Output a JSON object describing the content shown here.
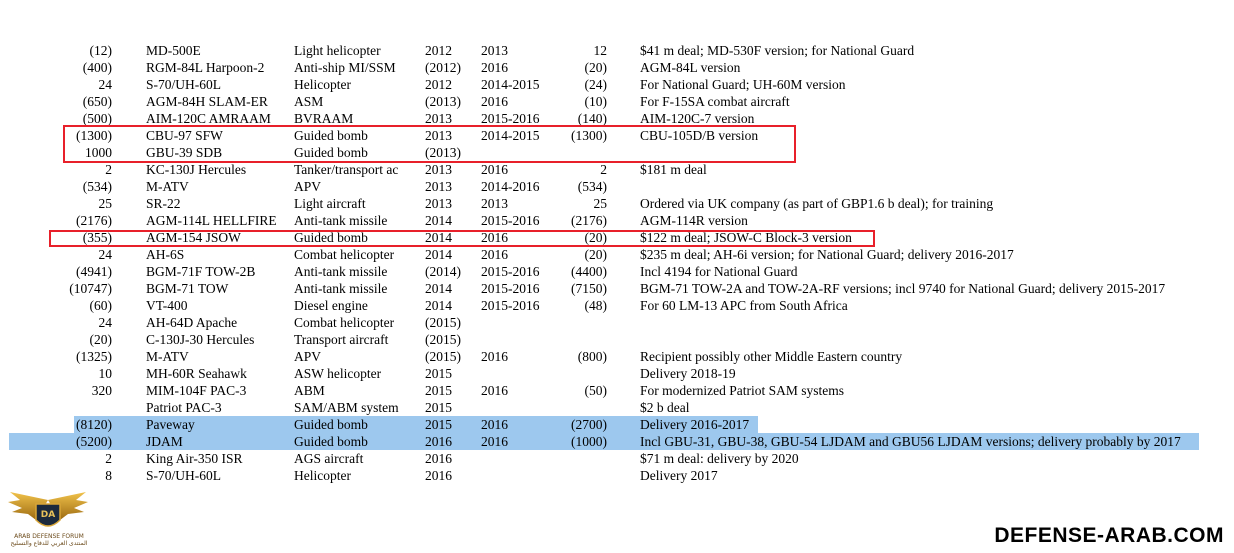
{
  "rows": [
    {
      "qty": "(12)",
      "name": "MD-500E",
      "desc": "Light helicopter",
      "ordered": "2012",
      "delivered": "2013",
      "number": "12",
      "comment": "$41 m deal; MD-530F version; for National Guard",
      "highlight": ""
    },
    {
      "qty": "(400)",
      "name": "RGM-84L Harpoon-2",
      "desc": "Anti-ship MI/SSM",
      "ordered": "(2012)",
      "delivered": "2016",
      "number": "(20)",
      "comment": "AGM-84L version",
      "highlight": ""
    },
    {
      "qty": "24",
      "name": "S-70/UH-60L",
      "desc": "Helicopter",
      "ordered": "2012",
      "delivered": "2014-2015",
      "number": "(24)",
      "comment": "For National Guard; UH-60M version",
      "highlight": ""
    },
    {
      "qty": "(650)",
      "name": "AGM-84H SLAM-ER",
      "desc": "ASM",
      "ordered": "(2013)",
      "delivered": "2016",
      "number": "(10)",
      "comment": "For F-15SA combat aircraft",
      "highlight": ""
    },
    {
      "qty": "(500)",
      "name": "AIM-120C AMRAAM",
      "desc": "BVRAAM",
      "ordered": "2013",
      "delivered": "2015-2016",
      "number": "(140)",
      "comment": "AIM-120C-7 version",
      "highlight": ""
    },
    {
      "qty": "(1300)",
      "name": "CBU-97 SFW",
      "desc": "Guided bomb",
      "ordered": "2013",
      "delivered": "2014-2015",
      "number": "(1300)",
      "comment": "CBU-105D/B version",
      "highlight": ""
    },
    {
      "qty": "1000",
      "name": "GBU-39 SDB",
      "desc": "Guided bomb",
      "ordered": "(2013)",
      "delivered": "",
      "number": "",
      "comment": "",
      "highlight": ""
    },
    {
      "qty": "2",
      "name": "KC-130J Hercules",
      "desc": "Tanker/transport ac",
      "ordered": "2013",
      "delivered": "2016",
      "number": "2",
      "comment": "$181 m deal",
      "highlight": ""
    },
    {
      "qty": "(534)",
      "name": "M-ATV",
      "desc": "APV",
      "ordered": "2013",
      "delivered": "2014-2016",
      "number": "(534)",
      "comment": "",
      "highlight": ""
    },
    {
      "qty": "25",
      "name": "SR-22",
      "desc": "Light aircraft",
      "ordered": "2013",
      "delivered": "2013",
      "number": "25",
      "comment": "Ordered via UK company (as part of GBP1.6 b deal); for training",
      "highlight": ""
    },
    {
      "qty": "(2176)",
      "name": "AGM-114L HELLFIRE",
      "desc": "Anti-tank missile",
      "ordered": "2014",
      "delivered": "2015-2016",
      "number": "(2176)",
      "comment": "AGM-114R version",
      "highlight": ""
    },
    {
      "qty": "(355)",
      "name": "AGM-154 JSOW",
      "desc": "Guided bomb",
      "ordered": "2014",
      "delivered": "2016",
      "number": "(20)",
      "comment": "$122 m deal; JSOW-C Block-3 version",
      "highlight": ""
    },
    {
      "qty": "24",
      "name": "AH-6S",
      "desc": "Combat helicopter",
      "ordered": "2014",
      "delivered": "2016",
      "number": "(20)",
      "comment": "$235 m deal; AH-6i version; for National Guard; delivery 2016-2017",
      "highlight": ""
    },
    {
      "qty": "(4941)",
      "name": "BGM-71F TOW-2B",
      "desc": "Anti-tank missile",
      "ordered": "(2014)",
      "delivered": "2015-2016",
      "number": "(4400)",
      "comment": "Incl 4194 for National Guard",
      "highlight": ""
    },
    {
      "qty": "(10747)",
      "name": "BGM-71 TOW",
      "desc": "Anti-tank missile",
      "ordered": "2014",
      "delivered": "2015-2016",
      "number": "(7150)",
      "comment": "BGM-71 TOW-2A and TOW-2A-RF versions; incl 9740 for National Guard; delivery 2015-2017",
      "highlight": ""
    },
    {
      "qty": "(60)",
      "name": "VT-400",
      "desc": "Diesel engine",
      "ordered": "2014",
      "delivered": "2015-2016",
      "number": "(48)",
      "comment": "For 60 LM-13 APC from South Africa",
      "highlight": ""
    },
    {
      "qty": "24",
      "name": "AH-64D Apache",
      "desc": "Combat helicopter",
      "ordered": "(2015)",
      "delivered": "",
      "number": "",
      "comment": "",
      "highlight": ""
    },
    {
      "qty": "(20)",
      "name": "C-130J-30 Hercules",
      "desc": "Transport aircraft",
      "ordered": "(2015)",
      "delivered": "",
      "number": "",
      "comment": "",
      "highlight": ""
    },
    {
      "qty": "(1325)",
      "name": "M-ATV",
      "desc": "APV",
      "ordered": "(2015)",
      "delivered": "2016",
      "number": "(800)",
      "comment": "Recipient possibly other Middle Eastern country",
      "highlight": ""
    },
    {
      "qty": "10",
      "name": "MH-60R Seahawk",
      "desc": "ASW helicopter",
      "ordered": "2015",
      "delivered": "",
      "number": "",
      "comment": "Delivery 2018-19",
      "highlight": ""
    },
    {
      "qty": "320",
      "name": "MIM-104F PAC-3",
      "desc": "ABM",
      "ordered": "2015",
      "delivered": "2016",
      "number": "(50)",
      "comment": "For modernized Patriot SAM systems",
      "highlight": ""
    },
    {
      "qty": "",
      "name": "Patriot PAC-3",
      "desc": "SAM/ABM system",
      "ordered": "2015",
      "delivered": "",
      "number": "",
      "comment": "$2 b deal",
      "highlight": ""
    },
    {
      "qty": "(8120)",
      "name": "Paveway",
      "desc": "Guided bomb",
      "ordered": "2015",
      "delivered": "2016",
      "number": "(2700)",
      "comment": "Delivery 2016-2017",
      "highlight": "short"
    },
    {
      "qty": "(5200)",
      "name": "JDAM",
      "desc": "Guided bomb",
      "ordered": "2016",
      "delivered": "2016",
      "number": "(1000)",
      "comment": "Incl GBU-31, GBU-38, GBU-54 LJDAM and GBU56 LJDAM versions; delivery probably by 2017",
      "highlight": "long"
    },
    {
      "qty": "2",
      "name": "King Air-350 ISR",
      "desc": "AGS aircraft",
      "ordered": "2016",
      "delivered": "",
      "number": "",
      "comment": "$71 m deal: delivery by 2020",
      "highlight": ""
    },
    {
      "qty": "8",
      "name": "S-70/UH-60L",
      "desc": "Helicopter",
      "ordered": "2016",
      "delivered": "",
      "number": "",
      "comment": "Delivery 2017",
      "highlight": ""
    }
  ],
  "logo": {
    "icon": "eagle-shield-logo",
    "letters": "DA",
    "line1": "ARAB DEFENSE FORUM",
    "line2": "المنتدى العربي للدفاع والتسليح"
  },
  "watermark": "DEFENSE-ARAB.COM",
  "colors": {
    "highlight": "#9dc8ee",
    "box": "#e8202a"
  }
}
